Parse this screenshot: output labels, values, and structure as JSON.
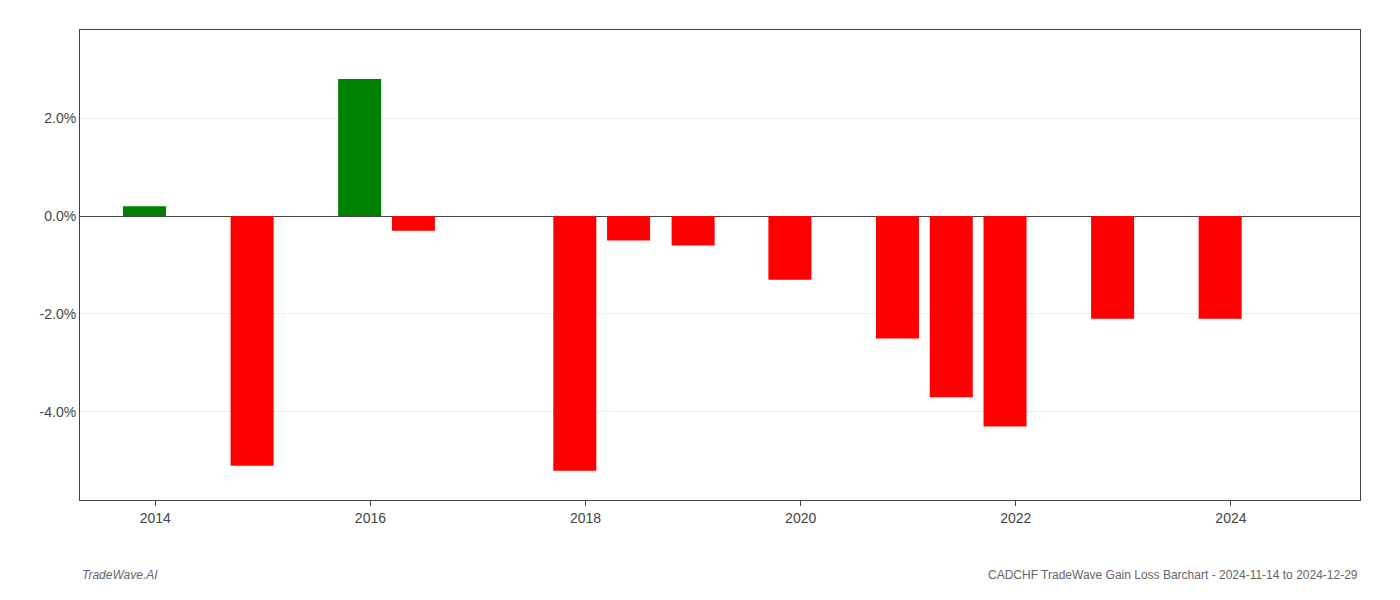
{
  "chart_data": {
    "type": "bar",
    "x": [
      2013.9,
      2014.9,
      2015.9,
      2016.4,
      2017.9,
      2018.4,
      2019.0,
      2019.9,
      2020.9,
      2021.4,
      2021.9,
      2022.9,
      2023.9
    ],
    "values": [
      0.002,
      -0.051,
      0.028,
      -0.003,
      -0.052,
      -0.005,
      -0.006,
      -0.013,
      -0.025,
      -0.037,
      -0.043,
      -0.021,
      -0.021
    ],
    "colors": [
      "#008000",
      "#ff0000",
      "#008000",
      "#ff0000",
      "#ff0000",
      "#ff0000",
      "#ff0000",
      "#ff0000",
      "#ff0000",
      "#ff0000",
      "#ff0000",
      "#ff0000",
      "#ff0000"
    ],
    "xlim": [
      2013.3,
      2025.2
    ],
    "ylim": [
      -0.058,
      0.038
    ],
    "xticks": [
      2014,
      2016,
      2018,
      2020,
      2022,
      2024
    ],
    "yticks": [
      {
        "value": -0.04,
        "label": "-4.0%"
      },
      {
        "value": -0.02,
        "label": "-2.0%"
      },
      {
        "value": 0.0,
        "label": "0.0%"
      },
      {
        "value": 0.02,
        "label": "2.0%"
      }
    ],
    "grid": true,
    "annotations": [
      "TradeWave.AI",
      "CADCHF TradeWave Gain Loss Barchart - 2024-11-14 to 2024-12-29"
    ]
  }
}
